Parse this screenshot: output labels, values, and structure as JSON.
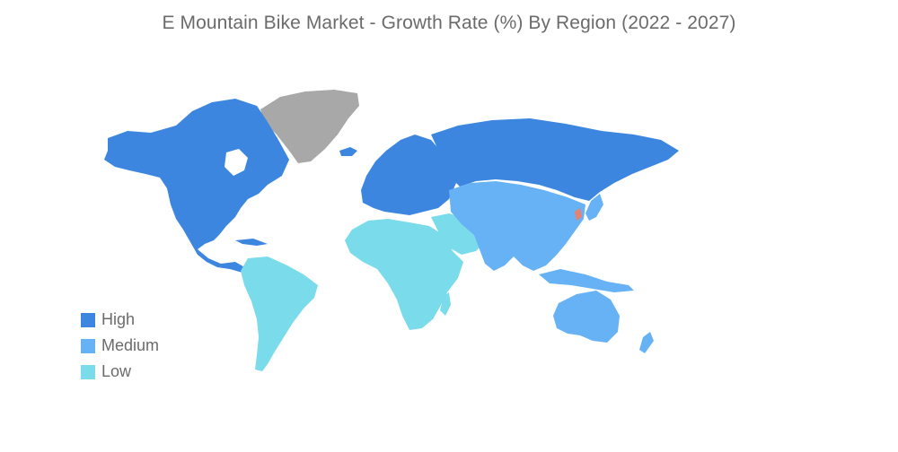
{
  "title": "E Mountain Bike Market - Growth Rate (%) By Region (2022 - 2027)",
  "colors": {
    "high": "#3d86e0",
    "medium": "#66b2f5",
    "low": "#7adbeb",
    "no_data": "#a8a8a8",
    "accent_red": "#e8826e"
  },
  "legend": [
    {
      "label": "High",
      "color": "#3d86e0"
    },
    {
      "label": "Medium",
      "color": "#66b2f5"
    },
    {
      "label": "Low",
      "color": "#7adbeb"
    }
  ],
  "regions": [
    {
      "name": "North America",
      "level": "High"
    },
    {
      "name": "Europe",
      "level": "High"
    },
    {
      "name": "Asia-Pacific",
      "level": "Medium"
    },
    {
      "name": "South America",
      "level": "Low"
    },
    {
      "name": "Middle East and Africa",
      "level": "Low"
    }
  ]
}
